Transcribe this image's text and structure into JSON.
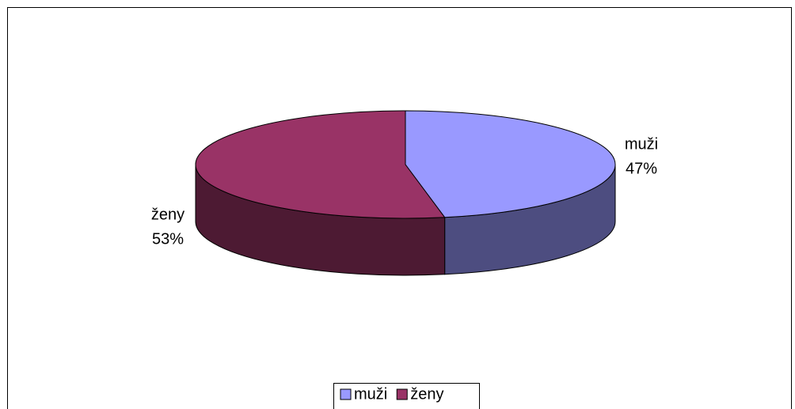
{
  "chart_data": {
    "type": "pie",
    "categories": [
      "muži",
      "ženy"
    ],
    "values": [
      47,
      53
    ],
    "value_labels": [
      "47%",
      "53%"
    ],
    "colors": [
      "#9999ff",
      "#993366"
    ],
    "legend": "bottom"
  }
}
